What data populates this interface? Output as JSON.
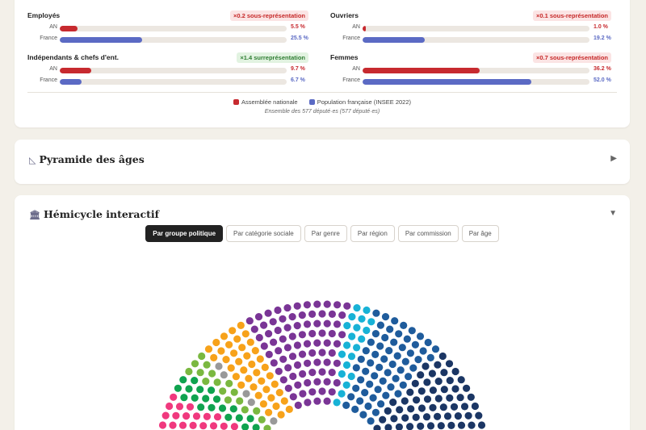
{
  "stats": {
    "metrics": [
      {
        "title": "Employés",
        "badge": "×0.2 sous-représentation",
        "badge_type": "under",
        "an_label": "AN",
        "fr_label": "France",
        "an_value": "5.5 %",
        "fr_value": "25.5 %",
        "an_pct": 5.5,
        "fr_pct": 25.5
      },
      {
        "title": "Ouvriers",
        "badge": "×0.1 sous-représentation",
        "badge_type": "under",
        "an_label": "AN",
        "fr_label": "France",
        "an_value": "1.0 %",
        "fr_value": "19.2 %",
        "an_pct": 1.0,
        "fr_pct": 19.2
      },
      {
        "title": "Indépendants & chefs d'ent.",
        "badge": "×1.4 surreprésentation",
        "badge_type": "over",
        "an_label": "AN",
        "fr_label": "France",
        "an_value": "9.7 %",
        "fr_value": "6.7 %",
        "an_pct": 9.7,
        "fr_pct": 6.7
      },
      {
        "title": "Femmes",
        "badge": "×0.7 sous-représentation",
        "badge_type": "under",
        "an_label": "AN",
        "fr_label": "France",
        "an_value": "36.2 %",
        "fr_value": "52.0 %",
        "an_pct": 36.2,
        "fr_pct": 52.0
      }
    ],
    "legend_an": "Assemblée nationale",
    "legend_fr": "Population française (INSEE 2022)",
    "footnote": "Ensemble des 577 député·es (577 député·es)",
    "colors": {
      "an": "#c72a2f",
      "fr": "#5b6ac4"
    }
  },
  "pyramide": {
    "title": "Pyramide des âges",
    "icon": "ruler-triangle-icon",
    "toggle_icon": "▶"
  },
  "hemicycle": {
    "title": "Hémicycle interactif",
    "icon": "building-columns-icon",
    "toggle_icon": "▼",
    "tabs": [
      "Par groupe politique",
      "Par catégorie sociale",
      "Par genre",
      "Par région",
      "Par commission",
      "Par âge"
    ],
    "active_tab": 0,
    "group_colors": [
      "#d42d55",
      "#f0397e",
      "#0fa34f",
      "#7ab840",
      "#999999",
      "#f7a21a",
      "#7a3596",
      "#18b2d6",
      "#1f5c9c",
      "#1b3664"
    ]
  }
}
